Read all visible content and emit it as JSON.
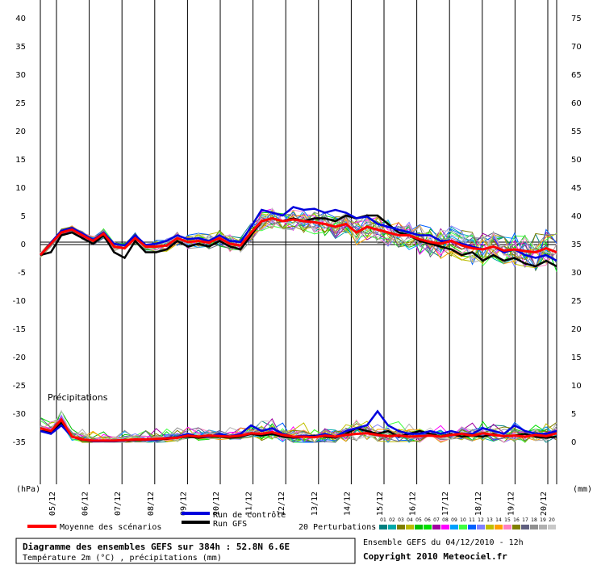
{
  "chart_data": {
    "type": "line",
    "left_axis_ticks": [
      40,
      35,
      30,
      25,
      20,
      15,
      10,
      5,
      0,
      -5,
      -10,
      -15,
      -20,
      -25,
      -30,
      -35
    ],
    "right_axis_ticks": [
      75,
      70,
      65,
      60,
      55,
      50,
      45,
      40,
      35,
      30,
      25,
      20,
      15,
      10,
      5,
      0
    ],
    "left_unit": "(hPa)",
    "right_unit": "(mm)",
    "x_ticks": [
      "05/12",
      "06/12",
      "07/12",
      "08/12",
      "09/12",
      "10/12",
      "11/12",
      "12/12",
      "13/12",
      "14/12",
      "15/12",
      "16/12",
      "17/12",
      "18/12",
      "19/12",
      "20/12"
    ],
    "precip_label": "Précipitations",
    "zero_line_value": 0,
    "ylim": [
      -35,
      40
    ],
    "series": [
      {
        "name": "Moyenne des scénarios",
        "color": "#ff0000",
        "temp": [
          -2.0,
          0.0,
          2.0,
          2.5,
          1.5,
          0.5,
          1.8,
          -0.5,
          -0.8,
          1.0,
          -0.5,
          -0.5,
          -0.3,
          1.0,
          0.3,
          0.5,
          0.2,
          1.0,
          0.0,
          -0.3,
          2.0,
          4.0,
          4.5,
          4.0,
          4.3,
          4.0,
          3.8,
          3.5,
          3.0,
          3.5,
          2.0,
          3.0,
          2.5,
          2.0,
          1.5,
          1.5,
          0.8,
          0.3,
          0.0,
          0.5,
          -0.3,
          -0.8,
          -1.0,
          -0.5,
          -1.2,
          -1.0,
          -1.3,
          -1.5,
          -0.8,
          -1.5
        ],
        "precip": [
          2.5,
          2.0,
          4.0,
          1.0,
          0.5,
          0.3,
          0.3,
          0.3,
          0.4,
          0.5,
          0.5,
          0.6,
          0.7,
          0.8,
          1.2,
          1.0,
          1.2,
          1.1,
          1.0,
          1.2,
          1.6,
          1.5,
          1.8,
          1.3,
          1.0,
          1.0,
          0.9,
          1.2,
          1.0,
          1.3,
          1.5,
          1.6,
          1.3,
          1.1,
          1.2,
          1.0,
          1.1,
          1.2,
          1.0,
          1.3,
          1.5,
          1.2,
          1.6,
          1.3,
          1.1,
          1.2,
          1.0,
          1.3,
          1.1,
          1.6
        ]
      },
      {
        "name": "Run de contrôle",
        "color": "#0000dd",
        "temp": [
          -2.0,
          0.2,
          2.3,
          2.8,
          1.8,
          0.7,
          2.0,
          0.0,
          -0.3,
          1.5,
          -0.2,
          0.0,
          0.5,
          1.5,
          0.8,
          1.0,
          0.5,
          1.5,
          0.5,
          0.3,
          3.0,
          6.0,
          5.5,
          5.0,
          6.5,
          6.0,
          6.2,
          5.5,
          6.0,
          5.5,
          4.5,
          4.8,
          3.5,
          3.0,
          2.5,
          2.0,
          1.5,
          1.5,
          0.5,
          0.5,
          0.0,
          -0.5,
          -1.0,
          -0.5,
          -1.5,
          -1.0,
          -2.0,
          -2.5,
          -2.0,
          -3.0
        ],
        "precip": [
          2.0,
          1.5,
          3.0,
          1.0,
          0.5,
          0.2,
          0.2,
          0.2,
          0.3,
          0.5,
          0.4,
          0.5,
          0.8,
          0.9,
          1.5,
          1.0,
          1.0,
          1.5,
          1.0,
          1.5,
          3.0,
          2.0,
          2.5,
          1.5,
          1.0,
          1.2,
          1.0,
          1.5,
          1.0,
          2.0,
          2.5,
          3.0,
          5.5,
          3.0,
          2.0,
          1.5,
          1.5,
          2.0,
          1.5,
          2.0,
          1.5,
          1.5,
          2.5,
          2.0,
          1.5,
          3.0,
          2.0,
          1.5,
          1.5,
          2.0
        ]
      },
      {
        "name": "Run GFS",
        "color": "#000000",
        "temp": [
          -2.0,
          -1.5,
          1.5,
          2.0,
          1.0,
          0.0,
          1.5,
          -1.5,
          -2.5,
          0.5,
          -1.5,
          -1.5,
          -1.0,
          0.5,
          -0.5,
          0.0,
          -0.5,
          0.5,
          -0.5,
          -1.0,
          1.5,
          4.0,
          4.5,
          4.0,
          4.5,
          4.0,
          4.5,
          4.5,
          4.0,
          5.0,
          4.5,
          5.0,
          5.0,
          3.5,
          2.0,
          1.5,
          0.5,
          0.0,
          -0.5,
          -1.0,
          -2.0,
          -1.5,
          -3.0,
          -2.0,
          -3.0,
          -2.5,
          -3.5,
          -4.0,
          -3.0,
          -4.0
        ],
        "precip": [
          2.0,
          1.8,
          3.5,
          1.0,
          0.4,
          0.2,
          0.2,
          0.2,
          0.3,
          0.4,
          0.4,
          0.5,
          0.6,
          0.8,
          1.0,
          0.8,
          1.0,
          1.0,
          0.8,
          1.0,
          1.5,
          1.2,
          1.5,
          1.0,
          0.8,
          1.0,
          1.2,
          1.0,
          0.8,
          1.5,
          2.5,
          2.0,
          1.5,
          2.0,
          1.0,
          1.5,
          2.0,
          1.5,
          1.0,
          1.5,
          1.0,
          1.2,
          1.0,
          1.5,
          1.0,
          1.2,
          1.5,
          1.0,
          0.8,
          1.0
        ]
      }
    ]
  },
  "legend": {
    "control_label": "Run de contrôle",
    "gfs_label": "Run GFS",
    "mean_label": "Moyenne des scénarios",
    "perturbations_label": "20 Perturbations",
    "perturbation_numbers": [
      "01",
      "02",
      "03",
      "04",
      "05",
      "06",
      "07",
      "08",
      "09",
      "10",
      "11",
      "12",
      "13",
      "14",
      "15",
      "16",
      "17",
      "18",
      "19",
      "20"
    ],
    "perturbation_colors": [
      "#008080",
      "#00aaaa",
      "#7f7f00",
      "#bbbb00",
      "#00c000",
      "#00e000",
      "#a000a0",
      "#ff00ff",
      "#00a0ff",
      "#40ff40",
      "#0060ff",
      "#8080ff",
      "#c0c000",
      "#ffa000",
      "#ff80c0",
      "#808000",
      "#606080",
      "#909090",
      "#b0b0b0",
      "#c8c8c8"
    ]
  },
  "footer": {
    "title": "Diagramme des ensembles GEFS sur 384h : 52.8N 6.6E",
    "subtitle": "Température 2m (°C) , précipitations (mm)",
    "run_info": "Ensemble GEFS du 04/12/2010 - 12h",
    "copyright": "Copyright 2010 Meteociel.fr"
  }
}
